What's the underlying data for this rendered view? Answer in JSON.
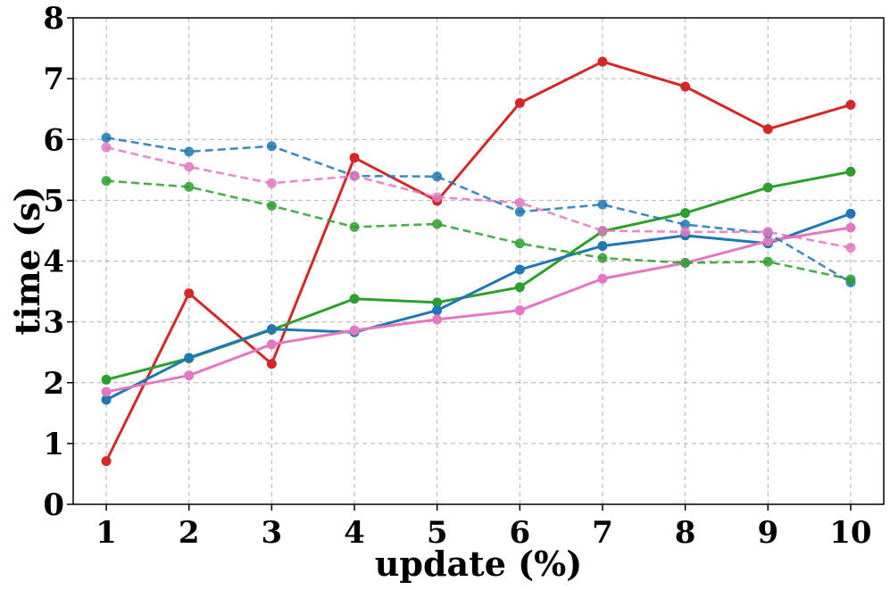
{
  "chart_data": {
    "type": "line",
    "title": "",
    "xlabel": "update (%)",
    "ylabel": "time (s)",
    "x": [
      1,
      2,
      3,
      4,
      5,
      6,
      7,
      8,
      9,
      10
    ],
    "xlim": [
      0.6,
      10.4
    ],
    "ylim": [
      0,
      8
    ],
    "yticks": [
      0,
      1,
      2,
      3,
      4,
      5,
      6,
      7,
      8
    ],
    "grid": true,
    "legend": "none",
    "series": [
      {
        "color": "#d62728",
        "style": "solid",
        "values": [
          0.71,
          3.47,
          2.31,
          5.7,
          4.99,
          6.6,
          7.28,
          6.87,
          6.17,
          6.57
        ]
      },
      {
        "color": "#2ca02c",
        "style": "solid",
        "values": [
          2.05,
          2.4,
          2.87,
          3.38,
          3.32,
          3.57,
          4.49,
          4.79,
          5.21,
          5.47
        ]
      },
      {
        "color": "#1f77b4",
        "style": "solid",
        "values": [
          1.72,
          2.41,
          2.88,
          2.83,
          3.19,
          3.86,
          4.25,
          4.42,
          4.29,
          4.78
        ]
      },
      {
        "color": "#e377c2",
        "style": "solid",
        "values": [
          1.85,
          2.12,
          2.63,
          2.86,
          3.04,
          3.19,
          3.71,
          3.97,
          4.33,
          4.55
        ]
      },
      {
        "color": "#1f77b4",
        "style": "dashed",
        "values": [
          6.03,
          5.8,
          5.89,
          5.4,
          5.39,
          4.81,
          4.93,
          4.6,
          4.46,
          3.65
        ]
      },
      {
        "color": "#e377c2",
        "style": "dashed",
        "values": [
          5.87,
          5.55,
          5.28,
          5.4,
          5.05,
          4.96,
          4.5,
          4.48,
          4.48,
          4.22
        ]
      },
      {
        "color": "#2ca02c",
        "style": "dashed",
        "values": [
          5.32,
          5.22,
          4.91,
          4.56,
          4.61,
          4.29,
          4.05,
          3.97,
          3.99,
          3.7
        ]
      }
    ]
  }
}
